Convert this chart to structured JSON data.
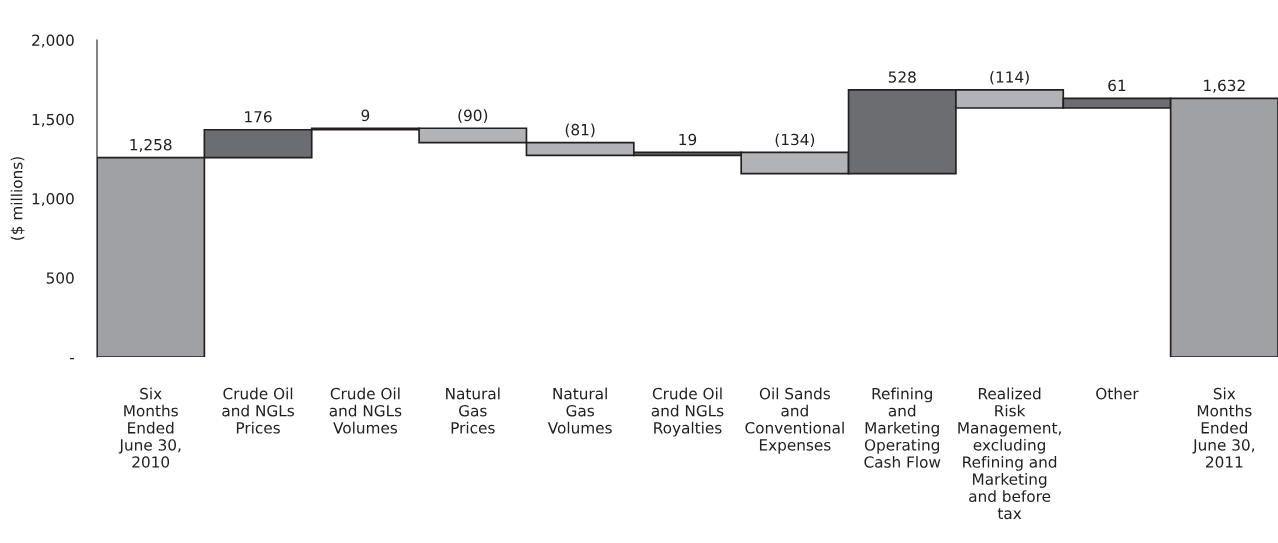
{
  "chart_data": {
    "type": "bar",
    "ylabel": "($ millions)",
    "categories": [
      "Six\nMonths\nEnded\nJune 30,\n2010",
      "Crude Oil\nand NGLs\nPrices",
      "Crude Oil\nand NGLs\nVolumes",
      "Natural\nGas\nPrices",
      "Natural\nGas\nVolumes",
      "Crude Oil\nand NGLs\nRoyalties",
      "Oil Sands\nand\nConventional\nExpenses",
      "Refining\nand\nMarketing\nOperating\nCash Flow",
      "Realized\nRisk\nManagement,\nexcluding\nRefining and\nMarketing\nand before\ntax",
      "Other",
      "Six\nMonths\nEnded\nJune 30,\n2011"
    ],
    "values": [
      1258,
      176,
      9,
      -90,
      -81,
      19,
      -134,
      528,
      -114,
      61,
      1632
    ],
    "base": [
      0,
      1258,
      1434,
      1443,
      1353,
      1272,
      1291,
      1157,
      1685,
      1571,
      0
    ],
    "colors": [
      "#a0a1a4",
      "#6c6d70",
      "#6c6d70",
      "#b2b3b6",
      "#b2b3b6",
      "#6c6d70",
      "#b2b3b6",
      "#6c6d70",
      "#b2b3b6",
      "#6c6d70",
      "#a0a1a4"
    ],
    "value_labels": [
      "1,258",
      "176",
      "9",
      "(90)",
      "(81)",
      "19",
      "(134)",
      "528",
      "(114)",
      "61",
      "1,632"
    ],
    "ylim": [
      0,
      2000
    ],
    "yticks": [
      {
        "value": 0,
        "label": "-"
      },
      {
        "value": 500,
        "label": "500"
      },
      {
        "value": 1000,
        "label": "1,000"
      },
      {
        "value": 1500,
        "label": "1,500"
      },
      {
        "value": 2000,
        "label": "2,000"
      }
    ],
    "grid": false
  }
}
